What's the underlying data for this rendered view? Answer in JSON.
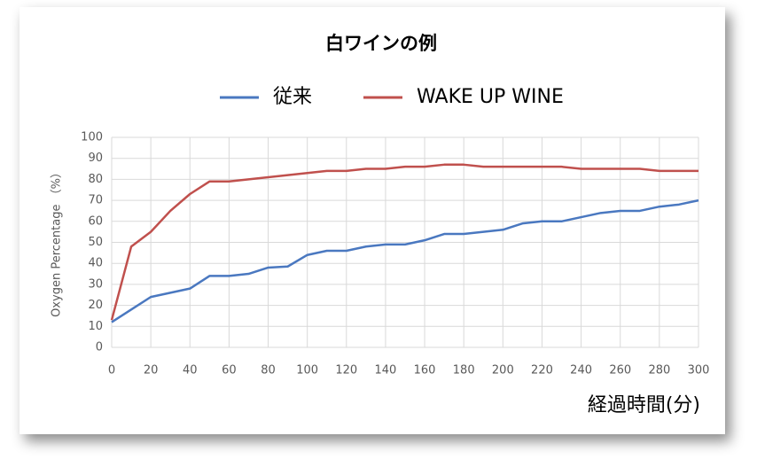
{
  "chart_data": {
    "type": "line",
    "title": "白ワインの例",
    "x_label": "経過時間(分)",
    "y_label": "Oxygen Percentage （%）",
    "x": [
      0,
      10,
      20,
      30,
      40,
      50,
      60,
      70,
      80,
      90,
      100,
      110,
      120,
      130,
      140,
      150,
      160,
      170,
      180,
      190,
      200,
      210,
      220,
      230,
      240,
      250,
      260,
      270,
      280,
      290,
      300
    ],
    "series": [
      {
        "name": "従来",
        "color": "#4a78c0",
        "values": [
          12,
          18,
          24,
          26,
          28,
          34,
          34,
          35,
          38,
          38.5,
          44,
          46,
          46,
          48,
          49,
          49,
          51,
          54,
          54,
          55,
          56,
          59,
          60,
          60,
          62,
          64,
          65,
          65,
          67,
          68,
          70
        ]
      },
      {
        "name": "WAKE UP WINE",
        "color": "#c0504d",
        "values": [
          13,
          48,
          55,
          65,
          73,
          79,
          79,
          80,
          81,
          82,
          83,
          84,
          84,
          85,
          85,
          86,
          86,
          87,
          87,
          86,
          86,
          86,
          86,
          86,
          85,
          85,
          85,
          85,
          84,
          84,
          84
        ]
      }
    ],
    "xlim": [
      0,
      300
    ],
    "xticks": [
      0,
      20,
      40,
      60,
      80,
      100,
      120,
      140,
      160,
      180,
      200,
      220,
      240,
      260,
      280,
      300
    ],
    "ylim": [
      0,
      100
    ],
    "yticks": [
      0,
      10,
      20,
      30,
      40,
      50,
      60,
      70,
      80,
      90,
      100
    ],
    "grid": true
  }
}
